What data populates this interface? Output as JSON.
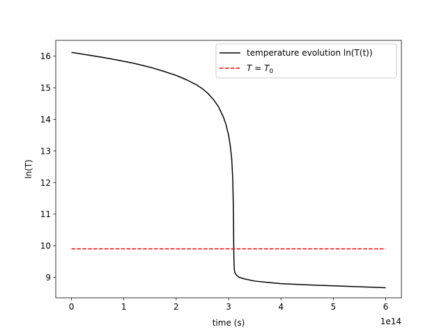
{
  "chart_data": {
    "type": "line",
    "title": "",
    "xlabel": "time (s)",
    "ylabel": "ln(T)",
    "x_offset_label": "1e14",
    "xlim": [
      -0.3,
      6.3
    ],
    "ylim": [
      8.35,
      16.5
    ],
    "x_ticks": [
      0,
      1,
      2,
      3,
      4,
      5,
      6
    ],
    "y_ticks": [
      9,
      10,
      11,
      12,
      13,
      14,
      15,
      16
    ],
    "grid": false,
    "legend_position": "top-right",
    "series": [
      {
        "name": "temperature evolution ln(T(t))",
        "color": "#000000",
        "style": "solid",
        "x": [
          0,
          0.3,
          0.6,
          0.9,
          1.2,
          1.5,
          1.8,
          2.0,
          2.2,
          2.4,
          2.5,
          2.6,
          2.7,
          2.8,
          2.9,
          2.95,
          3.0,
          3.03,
          3.06,
          3.08,
          3.09,
          3.095,
          3.1,
          3.105,
          3.11,
          3.12,
          3.15,
          3.2,
          3.3,
          3.5,
          3.8,
          4.0,
          4.5,
          5.0,
          5.5,
          6.0
        ],
        "y": [
          16.12,
          16.04,
          15.96,
          15.87,
          15.77,
          15.65,
          15.5,
          15.39,
          15.25,
          15.08,
          14.97,
          14.83,
          14.65,
          14.42,
          14.08,
          13.84,
          13.5,
          13.2,
          12.75,
          12.1,
          11.3,
          10.6,
          9.8,
          9.4,
          9.25,
          9.15,
          9.07,
          9.0,
          8.95,
          8.88,
          8.83,
          8.8,
          8.76,
          8.73,
          8.7,
          8.67
        ]
      },
      {
        "name": "T = T_0",
        "color": "#ff0000",
        "style": "dashed",
        "x": [
          0,
          6.0
        ],
        "y": [
          9.9,
          9.9
        ]
      }
    ]
  }
}
